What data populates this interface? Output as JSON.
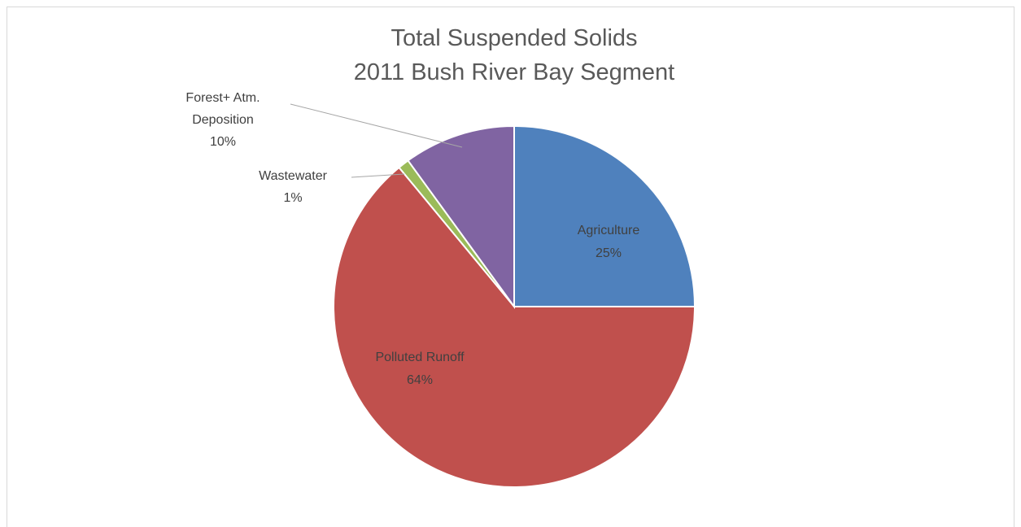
{
  "chart_data": {
    "type": "pie",
    "title_lines": [
      "Total Suspended Solids",
      "2011 Bush River Bay Segment"
    ],
    "slices": [
      {
        "label": "Agriculture",
        "label_lines": [
          "Agriculture"
        ],
        "value": 25,
        "percent_label": "25%",
        "color": "#4F81BD"
      },
      {
        "label": "Polluted Runoff",
        "label_lines": [
          "Polluted Runoff"
        ],
        "value": 64,
        "percent_label": "64%",
        "color": "#C0504D"
      },
      {
        "label": "Wastewater",
        "label_lines": [
          "Wastewater"
        ],
        "value": 1,
        "percent_label": "1%",
        "color": "#9BBB59"
      },
      {
        "label": "Forest+ Atm. Deposition",
        "label_lines": [
          "Forest+ Atm.",
          "Deposition"
        ],
        "value": 10,
        "percent_label": "10%",
        "color": "#8064A2"
      }
    ]
  }
}
